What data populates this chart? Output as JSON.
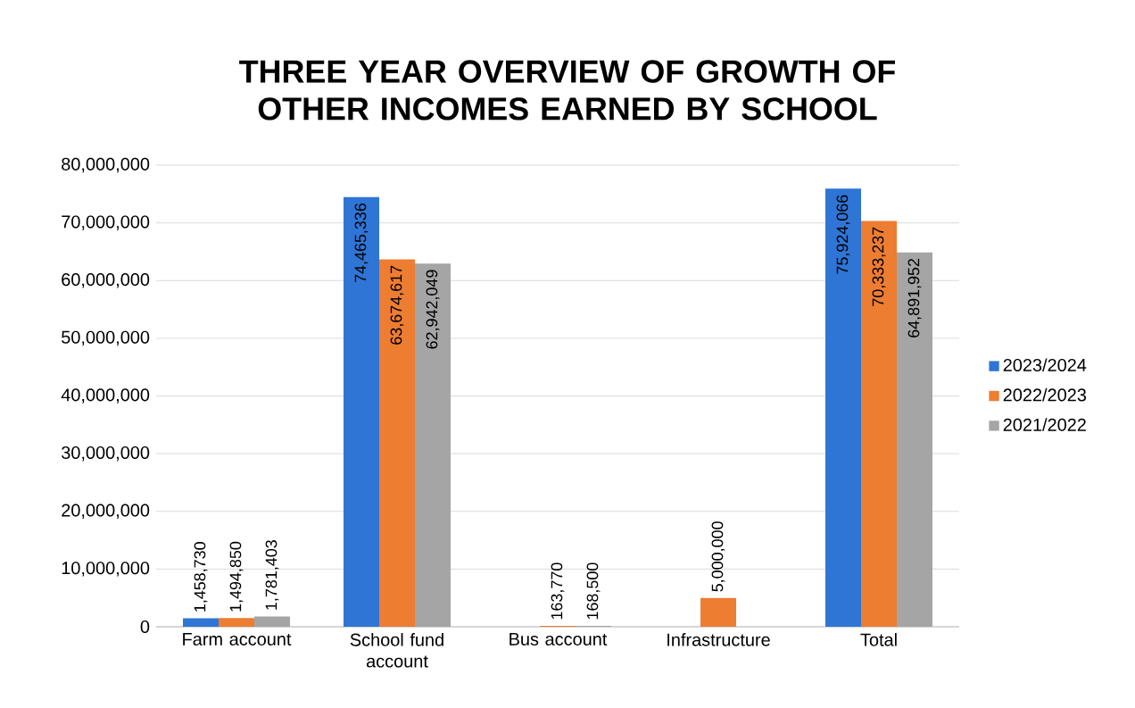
{
  "chart_data": {
    "type": "bar",
    "title": "THREE YEAR OVERVIEW OF GROWTH OF OTHER INCOMES EARNED BY SCHOOL",
    "categories": [
      "Farm account",
      "School fund account",
      "Bus account",
      "Infrastructure",
      "Total"
    ],
    "series": [
      {
        "name": "2023/2024",
        "color": "#2e75d6",
        "values": [
          1458730,
          74465336,
          null,
          null,
          75924066
        ],
        "value_labels": [
          "1,458,730",
          "74,465,336",
          null,
          null,
          "75,924,066"
        ]
      },
      {
        "name": "2022/2023",
        "color": "#ed7d31",
        "values": [
          1494850,
          63674617,
          163770,
          5000000,
          70333237
        ],
        "value_labels": [
          "1,494,850",
          "63,674,617",
          "163,770",
          "5,000,000",
          "70,333,237"
        ]
      },
      {
        "name": "2021/2022",
        "color": "#a5a5a5",
        "values": [
          1781403,
          62942049,
          168500,
          null,
          64891952
        ],
        "value_labels": [
          "1,781,403",
          "62,942,049",
          "168,500",
          null,
          "64,891,952"
        ]
      }
    ],
    "ylim": [
      0,
      80000000
    ],
    "yticks": [
      0,
      {
        "value": 10000000,
        "label": "10,000,000"
      },
      {
        "value": 20000000,
        "label": "20,000,000"
      },
      {
        "value": 30000000,
        "label": "30,000,000"
      },
      {
        "value": 40000000,
        "label": "40,000,000"
      },
      {
        "value": 50000000,
        "label": "50,000,000"
      },
      {
        "value": 60000000,
        "label": "60,000,000"
      },
      {
        "value": 70000000,
        "label": "70,000,000"
      },
      {
        "value": 80000000,
        "label": "80,000,000"
      }
    ],
    "grid": "y",
    "legend": "right"
  }
}
